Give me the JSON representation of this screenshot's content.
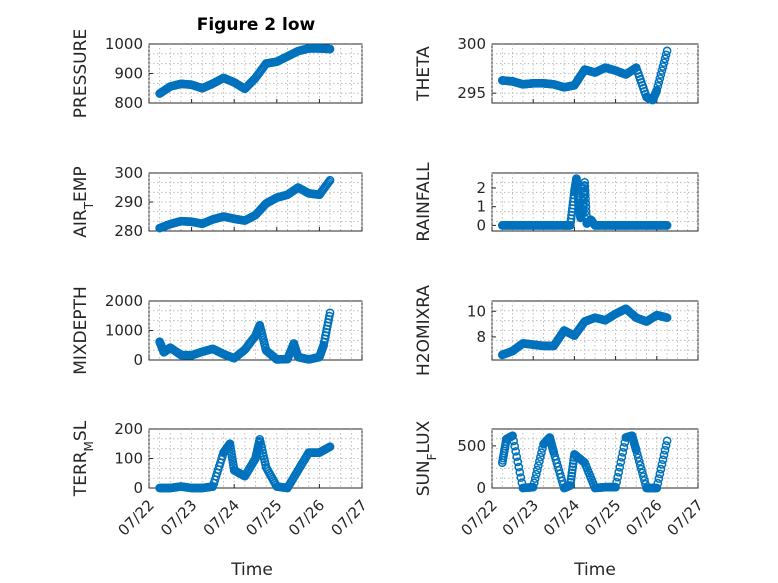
{
  "figure": {
    "title": "Figure 2 low",
    "x_axis": {
      "label": "Time",
      "ticks": [
        0,
        1,
        2,
        3,
        4,
        5
      ],
      "tick_labels": [
        "07/22",
        "07/23",
        "07/24",
        "07/25",
        "07/26",
        "07/27"
      ]
    }
  },
  "chart_data": [
    {
      "type": "scatter",
      "title": "Figure 2 low",
      "xlabel": "",
      "ylabel": "PRESSURE",
      "ylabel_parts": [
        {
          "t": "PRESSURE"
        }
      ],
      "xlim": [
        0,
        5
      ],
      "ylim": [
        800,
        1000
      ],
      "yticks": [
        800,
        900,
        1000
      ],
      "grid": true,
      "x_labels_shown": false,
      "x": [
        0.25,
        0.5,
        0.75,
        1.0,
        1.25,
        1.5,
        1.75,
        2.0,
        2.25,
        2.5,
        2.75,
        3.0,
        3.25,
        3.5,
        3.75,
        4.0,
        4.25
      ],
      "y": [
        832,
        856,
        865,
        862,
        850,
        866,
        885,
        870,
        848,
        885,
        934,
        940,
        958,
        976,
        985,
        985,
        983
      ]
    },
    {
      "type": "scatter",
      "xlabel": "",
      "ylabel": "THETA",
      "ylabel_parts": [
        {
          "t": "THETA"
        }
      ],
      "xlim": [
        0,
        5
      ],
      "ylim": [
        294,
        300
      ],
      "yticks": [
        295,
        300
      ],
      "grid": true,
      "x_labels_shown": false,
      "x": [
        0.25,
        0.5,
        0.75,
        1.0,
        1.25,
        1.5,
        1.75,
        2.0,
        2.25,
        2.5,
        2.75,
        3.0,
        3.25,
        3.5,
        3.75,
        3.9,
        4.0,
        4.25
      ],
      "y": [
        296.3,
        296.2,
        295.9,
        296.0,
        296.0,
        295.9,
        295.6,
        295.8,
        297.4,
        297.1,
        297.6,
        297.3,
        296.9,
        297.6,
        294.6,
        294.3,
        295.3,
        299.3
      ]
    },
    {
      "type": "scatter",
      "xlabel": "",
      "ylabel": "AIR_TEMP",
      "ylabel_parts": [
        {
          "t": "AIR"
        },
        {
          "t": "T",
          "sub": true
        },
        {
          "t": "EMP"
        }
      ],
      "xlim": [
        0,
        5
      ],
      "ylim": [
        280,
        300
      ],
      "yticks": [
        280,
        290,
        300
      ],
      "grid": true,
      "x_labels_shown": false,
      "x": [
        0.25,
        0.5,
        0.75,
        1.0,
        1.25,
        1.5,
        1.75,
        2.0,
        2.25,
        2.5,
        2.75,
        3.0,
        3.25,
        3.5,
        3.75,
        4.0,
        4.25
      ],
      "y": [
        281,
        282.4,
        283.4,
        283.2,
        282.5,
        284,
        285,
        284.2,
        283.6,
        285.5,
        289.5,
        291.5,
        292.5,
        295,
        293,
        292.5,
        297.5
      ]
    },
    {
      "type": "scatter",
      "xlabel": "",
      "ylabel": "RAINFALL",
      "ylabel_parts": [
        {
          "t": "RAINFALL"
        }
      ],
      "xlim": [
        0,
        5
      ],
      "ylim": [
        -0.3,
        2.8
      ],
      "yticks": [
        0,
        1,
        2
      ],
      "grid": true,
      "x_labels_shown": false,
      "x": [
        0.25,
        0.5,
        0.75,
        1.0,
        1.25,
        1.5,
        1.75,
        1.9,
        2.0,
        2.05,
        2.1,
        2.15,
        2.2,
        2.25,
        2.3,
        2.4,
        2.5,
        2.75,
        3.0,
        3.25,
        3.5,
        3.75,
        4.0,
        4.25
      ],
      "y": [
        0,
        0,
        0,
        0,
        0,
        0,
        0,
        0,
        1.8,
        2.5,
        1.2,
        0.4,
        0.7,
        2.3,
        0.1,
        0.3,
        0,
        0,
        0,
        0,
        0,
        0,
        0,
        0
      ]
    },
    {
      "type": "scatter",
      "xlabel": "",
      "ylabel": "MIXDEPTH",
      "ylabel_parts": [
        {
          "t": "MIXDEPTH"
        }
      ],
      "xlim": [
        0,
        5
      ],
      "ylim": [
        0,
        2000
      ],
      "yticks": [
        0,
        1000,
        2000
      ],
      "grid": true,
      "x_labels_shown": false,
      "x": [
        0.25,
        0.35,
        0.5,
        0.75,
        1.0,
        1.25,
        1.5,
        1.75,
        2.0,
        2.25,
        2.5,
        2.6,
        2.75,
        3.0,
        3.25,
        3.4,
        3.5,
        3.75,
        4.0,
        4.1,
        4.25
      ],
      "y": [
        620,
        260,
        420,
        170,
        160,
        280,
        380,
        200,
        60,
        350,
        820,
        1180,
        320,
        20,
        30,
        560,
        100,
        20,
        100,
        500,
        1600
      ]
    },
    {
      "type": "scatter",
      "xlabel": "",
      "ylabel": "H2OMIXRA",
      "ylabel_parts": [
        {
          "t": "H2OMIXRA"
        }
      ],
      "xlim": [
        0,
        5
      ],
      "ylim": [
        6.2,
        10.8
      ],
      "yticks": [
        8,
        10
      ],
      "grid": true,
      "x_labels_shown": false,
      "x": [
        0.25,
        0.5,
        0.75,
        1.0,
        1.25,
        1.5,
        1.75,
        2.0,
        2.25,
        2.5,
        2.75,
        3.0,
        3.25,
        3.5,
        3.75,
        4.0,
        4.25
      ],
      "y": [
        6.6,
        6.9,
        7.5,
        7.4,
        7.3,
        7.3,
        8.5,
        8.1,
        9.2,
        9.5,
        9.3,
        9.8,
        10.2,
        9.5,
        9.2,
        9.7,
        9.5
      ]
    },
    {
      "type": "scatter",
      "xlabel": "Time",
      "ylabel": "TERR_MSL",
      "ylabel_parts": [
        {
          "t": "TERR"
        },
        {
          "t": "M",
          "sub": true
        },
        {
          "t": "SL"
        }
      ],
      "xlim": [
        0,
        5
      ],
      "ylim": [
        0,
        200
      ],
      "yticks": [
        0,
        100,
        200
      ],
      "grid": true,
      "x_labels_shown": true,
      "x": [
        0.25,
        0.5,
        0.75,
        1.0,
        1.25,
        1.5,
        1.75,
        1.9,
        2.0,
        2.25,
        2.5,
        2.6,
        2.75,
        3.0,
        3.25,
        3.5,
        3.75,
        4.0,
        4.25
      ],
      "y": [
        0,
        0,
        5,
        0,
        0,
        5,
        120,
        150,
        60,
        40,
        100,
        165,
        70,
        5,
        0,
        60,
        120,
        120,
        140
      ]
    },
    {
      "type": "scatter",
      "xlabel": "Time",
      "ylabel": "SUN_FLUX",
      "ylabel_parts": [
        {
          "t": "SUN"
        },
        {
          "t": "F",
          "sub": true
        },
        {
          "t": "LUX"
        }
      ],
      "xlim": [
        0,
        5
      ],
      "ylim": [
        0,
        700
      ],
      "yticks": [
        0,
        500
      ],
      "grid": true,
      "x_labels_shown": true,
      "x": [
        0.25,
        0.35,
        0.5,
        0.75,
        1.0,
        1.25,
        1.4,
        1.5,
        1.75,
        1.9,
        2.0,
        2.25,
        2.5,
        2.75,
        3.0,
        3.25,
        3.4,
        3.5,
        3.75,
        4.0,
        4.25
      ],
      "y": [
        300,
        580,
        620,
        0,
        10,
        520,
        600,
        420,
        0,
        30,
        400,
        300,
        0,
        10,
        10,
        600,
        620,
        450,
        0,
        0,
        560
      ]
    }
  ]
}
